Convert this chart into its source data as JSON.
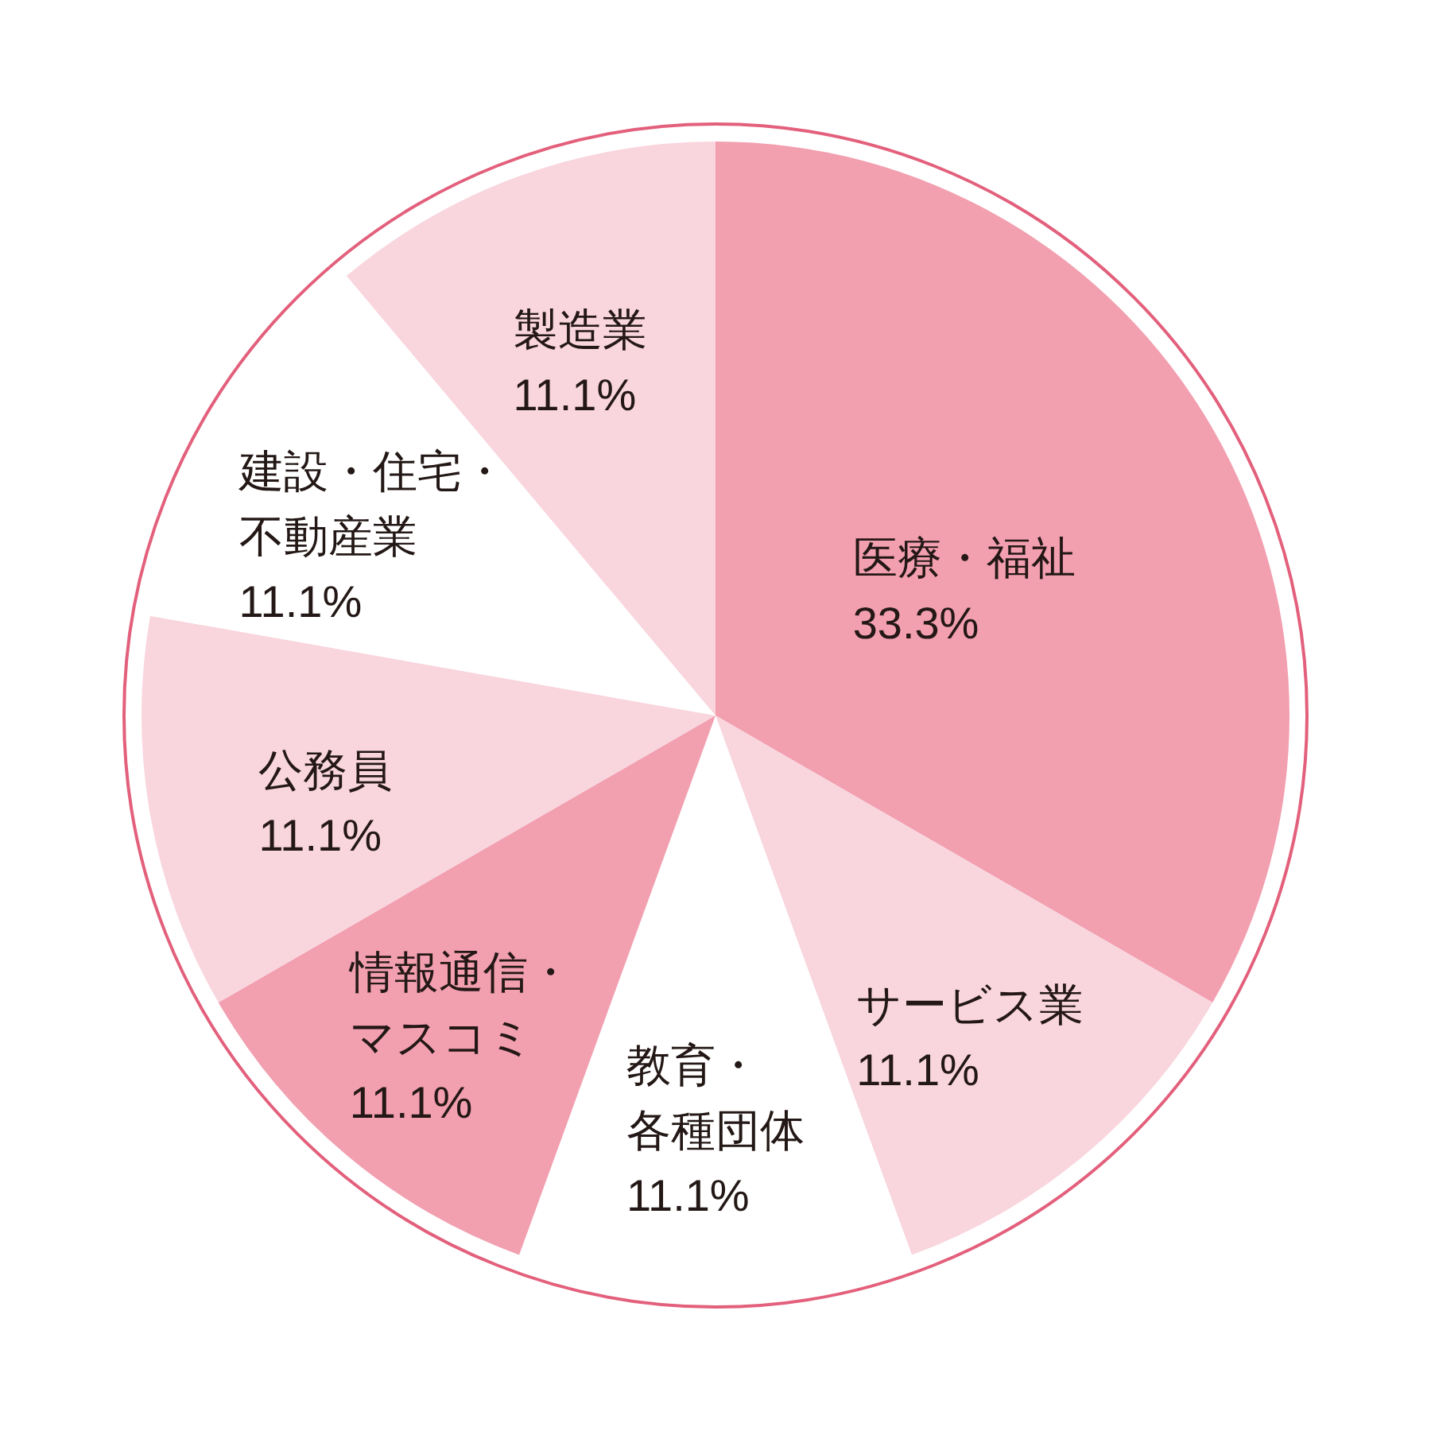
{
  "chart_data": {
    "type": "pie",
    "categories": [
      "医療・福祉",
      "サービス業",
      "教育・各種団体",
      "情報通信・マスコミ",
      "公務員",
      "建設・住宅・不動産業",
      "製造業"
    ],
    "values": [
      33.3,
      11.1,
      11.1,
      11.1,
      11.1,
      11.1,
      11.1
    ],
    "colors": [
      "#f29fb0",
      "#f9d5de",
      "#ffffff",
      "#f29fb0",
      "#f9d5de",
      "#ffffff",
      "#f9d5de"
    ],
    "value_labels": [
      "33.3%",
      "11.1%",
      "11.1%",
      "11.1%",
      "11.1%",
      "11.1%",
      "11.1%"
    ]
  }
}
